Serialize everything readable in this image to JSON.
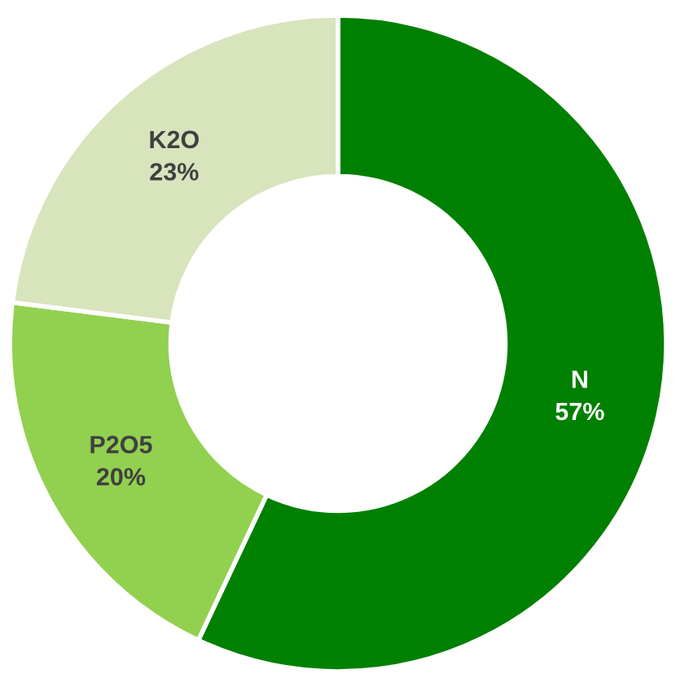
{
  "chart_data": {
    "type": "donut",
    "categories": [
      "N",
      "P2O5",
      "K2O"
    ],
    "values": [
      57,
      20,
      23
    ],
    "colors": [
      "#008000",
      "#92d050",
      "#d8e4bc"
    ],
    "value_labels": [
      "57%",
      "20%",
      "23%"
    ]
  }
}
